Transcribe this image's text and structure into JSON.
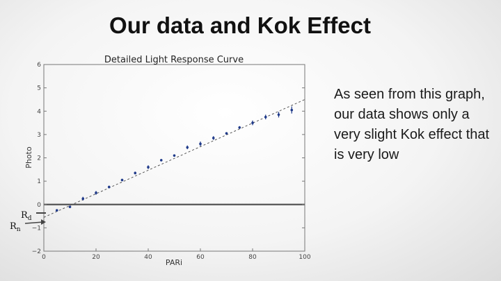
{
  "slide": {
    "title": "Our data and Kok Effect",
    "body": "As seen from this graph, our data shows only a very slight Kok effect that is very low"
  },
  "annotations": {
    "rd_base": "R",
    "rd_sub": "d",
    "rn_base": "R",
    "rn_sub": "n"
  },
  "chart_data": {
    "type": "scatter",
    "title": "Detailed Light Response Curve",
    "xlabel": "PARi",
    "ylabel": "Photo",
    "xlim": [
      0,
      100
    ],
    "ylim": [
      -2,
      6
    ],
    "xticks": [
      0,
      20,
      40,
      60,
      80,
      100
    ],
    "yticks": [
      -2,
      -1,
      0,
      1,
      2,
      3,
      4,
      5,
      6
    ],
    "grid": false,
    "points": {
      "x": [
        5,
        10,
        15,
        20,
        25,
        30,
        35,
        40,
        45,
        50,
        55,
        60,
        65,
        70,
        75,
        80,
        85,
        90,
        95
      ],
      "y": [
        -0.25,
        -0.1,
        0.25,
        0.5,
        0.75,
        1.05,
        1.35,
        1.6,
        1.9,
        2.1,
        2.45,
        2.6,
        2.85,
        3.05,
        3.3,
        3.5,
        3.75,
        3.85,
        4.05
      ],
      "err": [
        0.05,
        0.05,
        0.08,
        0.08,
        0.06,
        0.05,
        0.06,
        0.08,
        0.05,
        0.05,
        0.08,
        0.1,
        0.08,
        0.05,
        0.06,
        0.1,
        0.1,
        0.12,
        0.15
      ]
    },
    "fit_line": {
      "x": [
        0,
        100
      ],
      "y": [
        -0.55,
        4.5
      ],
      "style": "dashed"
    },
    "zero_line_y": 0,
    "colors": {
      "points": "#1f3a8a",
      "fit": "#555555",
      "zero_line": "#555555"
    }
  }
}
